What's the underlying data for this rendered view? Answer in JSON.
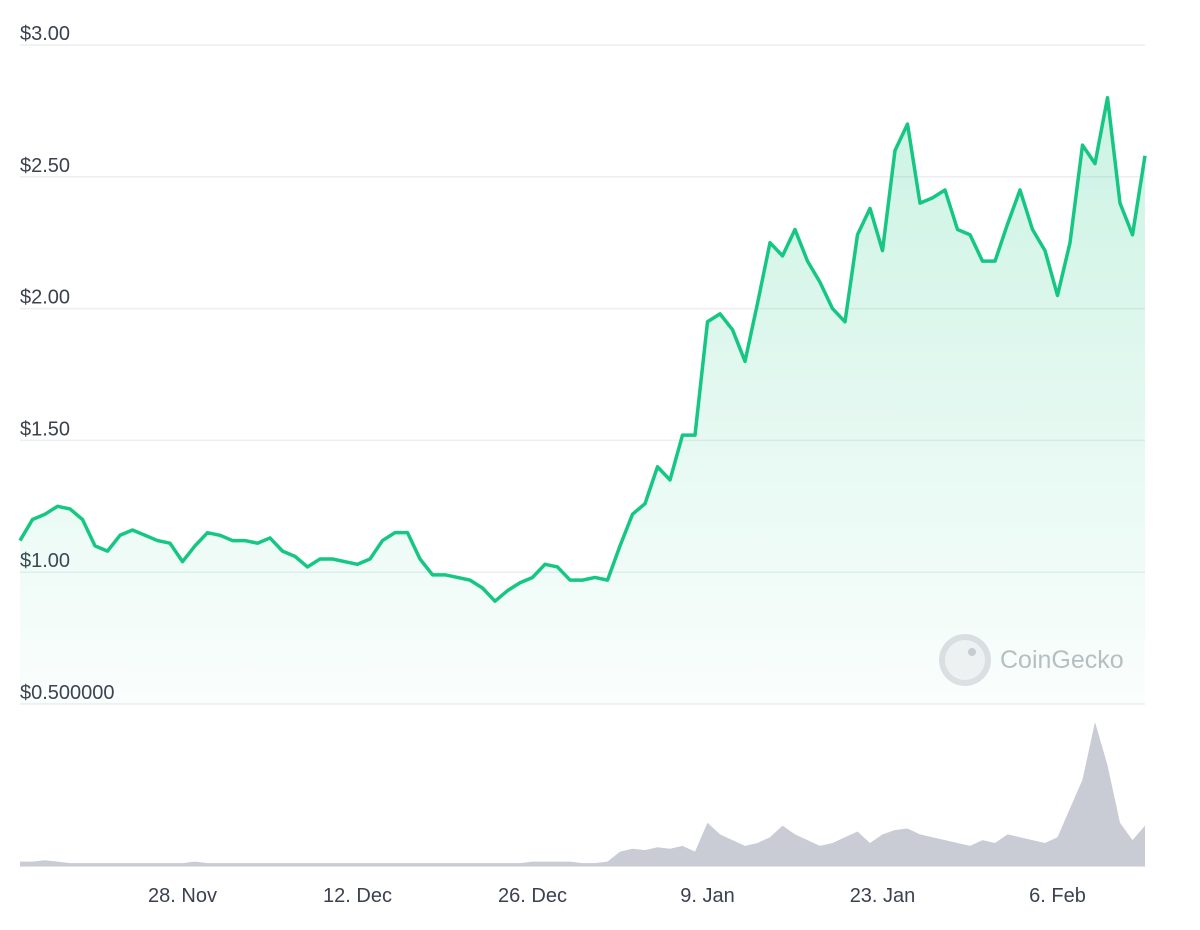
{
  "chart_data": {
    "type": "line",
    "watermark": "CoinGecko",
    "categories": [
      null,
      null,
      null,
      null,
      null,
      null,
      null,
      null,
      null,
      null,
      null,
      null,
      null,
      "28. Nov",
      null,
      null,
      null,
      null,
      null,
      null,
      null,
      null,
      null,
      null,
      null,
      null,
      null,
      "12. Dec",
      null,
      null,
      null,
      null,
      null,
      null,
      null,
      null,
      null,
      null,
      null,
      null,
      null,
      "26. Dec",
      null,
      null,
      null,
      null,
      null,
      null,
      null,
      null,
      null,
      null,
      null,
      null,
      null,
      "9. Jan",
      null,
      null,
      null,
      null,
      null,
      null,
      null,
      null,
      null,
      null,
      null,
      null,
      null,
      "23. Jan",
      null,
      null,
      null,
      null,
      null,
      null,
      null,
      null,
      null,
      null,
      null,
      null,
      null,
      "6. Feb",
      null,
      null,
      null,
      null,
      null,
      null,
      null
    ],
    "values": [
      1.12,
      1.2,
      1.22,
      1.25,
      1.24,
      1.2,
      1.1,
      1.08,
      1.14,
      1.16,
      1.14,
      1.12,
      1.11,
      1.04,
      1.1,
      1.15,
      1.14,
      1.12,
      1.12,
      1.11,
      1.13,
      1.08,
      1.06,
      1.02,
      1.05,
      1.05,
      1.04,
      1.03,
      1.05,
      1.12,
      1.15,
      1.15,
      1.05,
      0.99,
      0.99,
      0.98,
      0.97,
      0.94,
      0.89,
      0.93,
      0.96,
      0.98,
      1.03,
      1.02,
      0.97,
      0.97,
      0.98,
      0.97,
      1.1,
      1.22,
      1.26,
      1.4,
      1.35,
      1.52,
      1.52,
      1.95,
      1.98,
      1.92,
      1.8,
      2.02,
      2.25,
      2.2,
      2.3,
      2.18,
      2.1,
      2.0,
      1.95,
      2.28,
      2.38,
      2.22,
      2.6,
      2.7,
      2.4,
      2.42,
      2.45,
      2.3,
      2.28,
      2.18,
      2.18,
      2.32,
      2.45,
      2.3,
      2.22,
      2.05,
      2.25,
      2.62,
      2.55,
      2.8,
      2.4,
      2.28,
      2.58
    ],
    "color": "#16c784",
    "volume": [
      3,
      3,
      4,
      3,
      2,
      2,
      2,
      2,
      2,
      2,
      2,
      2,
      2,
      2,
      3,
      2,
      2,
      2,
      2,
      2,
      2,
      2,
      2,
      2,
      2,
      2,
      2,
      2,
      2,
      2,
      2,
      2,
      2,
      2,
      2,
      2,
      2,
      2,
      2,
      2,
      2,
      3,
      3,
      3,
      3,
      2,
      2,
      3,
      10,
      12,
      11,
      13,
      12,
      14,
      10,
      30,
      22,
      18,
      14,
      16,
      20,
      28,
      22,
      18,
      14,
      16,
      20,
      24,
      16,
      22,
      25,
      26,
      22,
      20,
      18,
      16,
      14,
      18,
      16,
      22,
      20,
      18,
      16,
      20,
      40,
      60,
      100,
      70,
      30,
      18,
      28
    ],
    "volume_color": "#c9ccd5",
    "ylim": [
      0.5,
      3.0
    ],
    "yticks": [
      {
        "value": 0.5,
        "label": "$0.500000"
      },
      {
        "value": 1.0,
        "label": "$1.00"
      },
      {
        "value": 1.5,
        "label": "$1.50"
      },
      {
        "value": 2.0,
        "label": "$2.00"
      },
      {
        "value": 2.5,
        "label": "$2.50"
      },
      {
        "value": 3.0,
        "label": "$3.00"
      }
    ],
    "grid": true
  }
}
